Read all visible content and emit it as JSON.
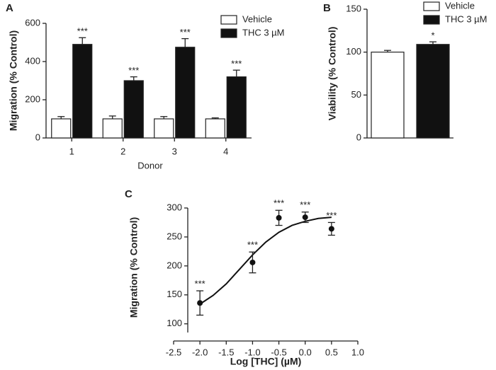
{
  "chart_data": [
    {
      "type": "bar",
      "panel": "A",
      "xlabel": "Donor",
      "ylabel": "Migration (% Control)",
      "categories": [
        "1",
        "2",
        "3",
        "4"
      ],
      "series": [
        {
          "name": "Vehicle",
          "color": "#ffffff",
          "values": [
            100,
            100,
            100,
            100
          ],
          "errors": [
            12,
            15,
            12,
            5
          ]
        },
        {
          "name": "THC 3 µM",
          "color": "#111111",
          "values": [
            490,
            300,
            475,
            320
          ],
          "errors": [
            35,
            20,
            45,
            35
          ],
          "annotations": [
            "***",
            "***",
            "***",
            "***"
          ]
        }
      ],
      "ylim": [
        0,
        600
      ],
      "yticks": [
        0,
        200,
        400,
        600
      ],
      "legend": "upper right"
    },
    {
      "type": "bar",
      "panel": "B",
      "ylabel": "Viability (% Control)",
      "categories": [
        null
      ],
      "series": [
        {
          "name": "Vehicle",
          "color": "#ffffff",
          "values": [
            100
          ],
          "errors": [
            2
          ]
        },
        {
          "name": "THC 3 µM",
          "color": "#111111",
          "values": [
            109
          ],
          "errors": [
            3
          ],
          "annotations": [
            "*"
          ]
        }
      ],
      "ylim": [
        0,
        150
      ],
      "yticks": [
        0,
        50,
        100,
        150
      ],
      "legend": "upper right"
    },
    {
      "type": "scatter",
      "panel": "C",
      "xlabel": "Log [THC] (µM)",
      "ylabel": "Migration (% Control)",
      "x": [
        -2,
        -1,
        -0.5,
        0,
        0.5
      ],
      "series": [
        {
          "color": "#111111",
          "values": [
            136,
            206,
            283,
            284,
            264
          ],
          "errors": [
            21,
            18,
            13,
            9,
            11
          ],
          "annotations": [
            "***",
            "***",
            "***",
            "***",
            "***"
          ]
        }
      ],
      "fit": {
        "x": [
          -2,
          -1.75,
          -1.5,
          -1.25,
          -1,
          -0.75,
          -0.5,
          -0.25,
          0,
          0.25,
          0.5
        ],
        "y": [
          134,
          149,
          169,
          194,
          219,
          241,
          258,
          270,
          277,
          282,
          284
        ]
      },
      "xlim": [
        -2.5,
        1.0
      ],
      "xticks": [
        -2.5,
        {
          "value": -2.0,
          "label": "-2.0"
        },
        -1.5,
        {
          "value": -1.0,
          "label": "-1.0"
        },
        -0.5,
        {
          "value": 0.0,
          "label": "0.0"
        },
        0.5,
        {
          "value": 1.0,
          "label": "1.0"
        }
      ],
      "ylim": [
        85,
        300
      ],
      "yticks": [
        100,
        150,
        200,
        250,
        300
      ]
    }
  ]
}
